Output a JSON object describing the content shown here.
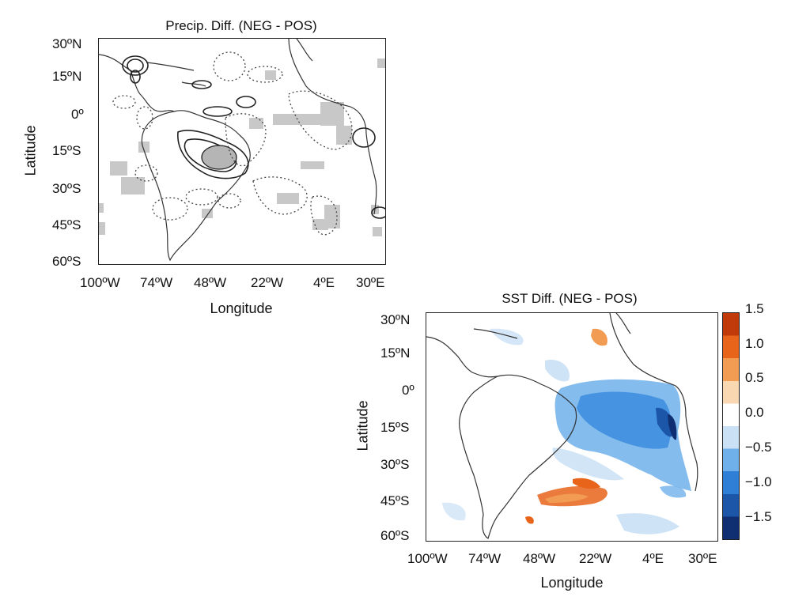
{
  "panels": [
    {
      "title": "Precip. Diff. (NEG - POS)",
      "xlabel": "Longitude",
      "ylabel": "Latitude",
      "xticks": [
        "100ºW",
        "74ºW",
        "48ºW",
        "22ºW",
        "4ºE",
        "30ºE"
      ],
      "yticks": [
        "30ºN",
        "15ºN",
        "0º",
        "15ºS",
        "30ºS",
        "45ºS",
        "60ºS"
      ]
    },
    {
      "title": "SST Diff. (NEG - POS)",
      "xlabel": "Longitude",
      "ylabel": "Latitude",
      "xticks": [
        "100ºW",
        "74ºW",
        "48ºW",
        "22ºW",
        "4ºE",
        "30ºE"
      ],
      "yticks": [
        "30ºN",
        "15ºN",
        "0º",
        "15ºS",
        "30ºS",
        "45ºS",
        "60ºS"
      ]
    }
  ],
  "colorbar": {
    "ticks": [
      "1.5",
      "1.0",
      "0.5",
      "0.0",
      "−0.5",
      "−1.0",
      "−1.5"
    ],
    "colors": [
      "#c03a0a",
      "#e8641a",
      "#f29b52",
      "#f9d7b0",
      "#ffffff",
      "#c9e0f5",
      "#6fb0ea",
      "#2f7fd6",
      "#1c56a8",
      "#0f2f72"
    ]
  }
}
